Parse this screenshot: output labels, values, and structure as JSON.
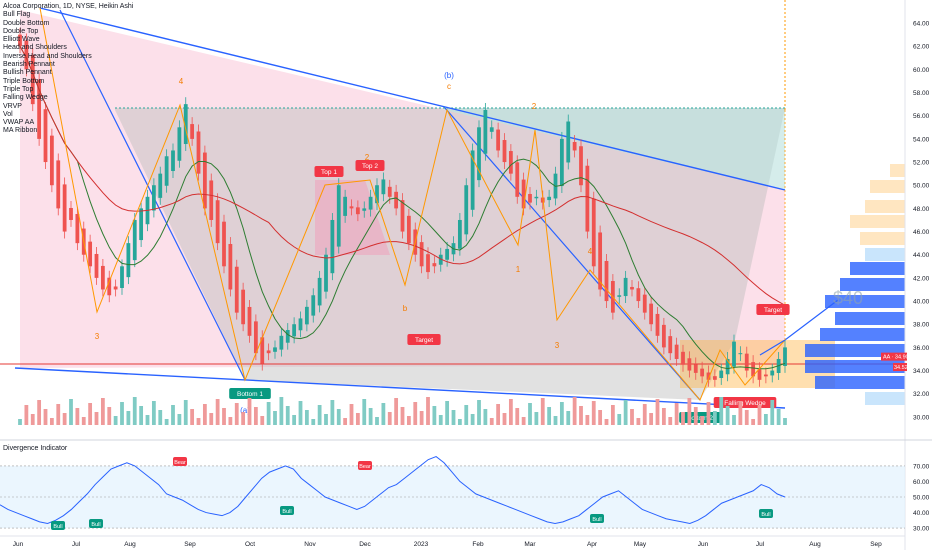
{
  "chart_data": {
    "type": "candlestick",
    "title": "Alcoa Corporation, 1D, NYSE, Heikin Ashi",
    "indicators": [
      "Bull Flag",
      "Double Bottom",
      "Double Top",
      "Elliott Wave",
      "Head and Shoulders",
      "Inverse Head and Shoulders",
      "Bearish Pennant",
      "Bullish Pennant",
      "Triple Bottom",
      "Triple Top",
      "Falling Wedge",
      "VRVP",
      "Vol",
      "VWAP AA",
      "MA Ribbon"
    ],
    "x_labels": [
      "Jun",
      "Jul",
      "Aug",
      "Sep",
      "Oct",
      "Nov",
      "Dec",
      "2023",
      "Feb",
      "Mar",
      "Apr",
      "May",
      "Jun",
      "Jul",
      "Aug",
      "Sep"
    ],
    "y_ticks": [
      30,
      32,
      34,
      36,
      38,
      40,
      42,
      44,
      46,
      48,
      50,
      52,
      54,
      56,
      58,
      60,
      62,
      64
    ],
    "y_range": [
      29.3,
      65.3
    ],
    "price_labels": [
      {
        "text": "AA · 34.90",
        "value": 34.9
      },
      {
        "text": "34.52",
        "value": 34.52
      }
    ],
    "close_series": [
      62,
      60,
      57,
      54,
      52,
      50,
      48,
      46,
      47,
      45,
      44,
      43,
      42,
      41,
      40.5,
      41,
      43,
      45,
      47,
      48,
      49,
      50,
      51,
      52.5,
      53,
      55,
      57,
      54,
      51,
      48,
      47,
      45,
      43,
      41,
      39,
      38,
      37,
      35.5,
      34.6,
      35.5,
      36,
      37,
      37.5,
      38,
      38.5,
      39.5,
      40.5,
      42,
      44,
      47,
      50,
      49,
      48,
      47.5,
      48,
      49,
      50,
      50.5,
      49,
      48,
      46,
      45,
      44,
      43,
      42.5,
      43,
      44,
      44.5,
      45,
      47,
      50,
      53,
      55,
      56.5,
      55,
      53,
      52,
      51,
      49,
      48,
      48.5,
      49,
      48.5,
      49,
      51,
      54,
      55.5,
      53,
      50,
      46,
      43,
      41,
      40,
      39,
      40.5,
      42,
      41,
      40,
      39,
      38,
      37,
      36,
      35.5,
      35,
      34.5,
      34,
      33.8,
      33.5,
      33.2,
      33.2,
      34,
      35,
      36.5,
      35.5,
      34,
      33.5,
      33.2,
      33.5,
      34,
      35,
      36
    ],
    "patterns": [
      {
        "label": "Top 1",
        "kind": "bear"
      },
      {
        "label": "Top 2",
        "kind": "bear"
      },
      {
        "label": "Bottom 1",
        "kind": "bull"
      },
      {
        "label": "Bottom 2",
        "kind": "bull"
      },
      {
        "label": "Target",
        "kind": "bear"
      },
      {
        "label": "Target",
        "kind": "bear"
      },
      {
        "label": "Falling Wedge",
        "kind": "bear"
      }
    ],
    "wave_labels": [
      {
        "text": "(b)",
        "color": "#2962ff"
      },
      {
        "text": "c",
        "color": "#f57c00"
      },
      {
        "text": "4",
        "color": "#f57c00"
      },
      {
        "text": "3",
        "color": "#f57c00"
      },
      {
        "text": "1",
        "color": "#f57c00"
      },
      {
        "text": "2",
        "color": "#f57c00"
      },
      {
        "text": "4",
        "color": "#f57c00"
      },
      {
        "text": "3",
        "color": "#f57c00"
      },
      {
        "text": "b",
        "color": "#f57c00"
      },
      {
        "text": "(a)",
        "color": "#2962ff"
      },
      {
        "text": "2",
        "color": "#f57c00"
      }
    ],
    "target_text": "$40",
    "divergence": {
      "title": "Divergence Indicator",
      "y_ticks": [
        30,
        40,
        50,
        60,
        70
      ],
      "y_range": [
        27.5,
        77
      ],
      "signals": [
        {
          "label": "Bear"
        },
        {
          "label": "Bear"
        },
        {
          "label": "Bull"
        },
        {
          "label": "Bull"
        },
        {
          "label": "Bull"
        },
        {
          "label": "Bull"
        },
        {
          "label": "Bull"
        }
      ],
      "series": [
        45,
        42,
        40,
        38,
        36,
        34,
        33,
        35,
        38,
        42,
        47,
        52,
        58,
        63,
        68,
        70,
        72,
        70,
        66,
        62,
        58,
        52,
        50,
        48,
        45,
        42,
        40,
        39,
        38,
        40,
        44,
        50,
        56,
        62,
        66,
        68,
        70,
        68,
        62,
        58,
        54,
        50,
        48,
        46,
        44,
        42,
        44,
        48,
        52,
        56,
        58,
        62,
        66,
        70,
        74,
        76,
        72,
        66,
        60,
        56,
        52,
        50,
        48,
        46,
        44,
        42,
        40,
        38,
        36,
        34,
        33,
        34,
        36,
        38,
        42,
        46,
        50,
        52,
        54,
        50,
        46,
        42,
        40,
        38,
        36,
        35,
        34,
        33,
        35,
        38,
        42,
        46,
        48,
        50,
        52,
        54,
        58,
        56,
        52,
        50
      ]
    }
  }
}
